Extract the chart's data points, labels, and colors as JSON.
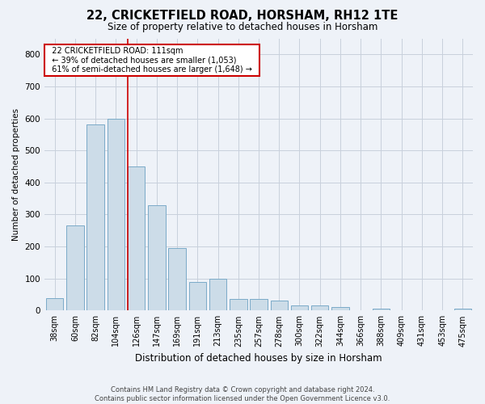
{
  "title": "22, CRICKETFIELD ROAD, HORSHAM, RH12 1TE",
  "subtitle": "Size of property relative to detached houses in Horsham",
  "xlabel": "Distribution of detached houses by size in Horsham",
  "ylabel": "Number of detached properties",
  "footer_line1": "Contains HM Land Registry data © Crown copyright and database right 2024.",
  "footer_line2": "Contains public sector information licensed under the Open Government Licence v3.0.",
  "bar_labels": [
    "38sqm",
    "60sqm",
    "82sqm",
    "104sqm",
    "126sqm",
    "147sqm",
    "169sqm",
    "191sqm",
    "213sqm",
    "235sqm",
    "257sqm",
    "278sqm",
    "300sqm",
    "322sqm",
    "344sqm",
    "366sqm",
    "388sqm",
    "409sqm",
    "431sqm",
    "453sqm",
    "475sqm"
  ],
  "bar_values": [
    38,
    265,
    580,
    600,
    450,
    330,
    195,
    90,
    100,
    35,
    35,
    30,
    15,
    15,
    10,
    0,
    5,
    0,
    0,
    0,
    5
  ],
  "bar_color": "#ccdce8",
  "bar_edge_color": "#7aaac8",
  "grid_color": "#c8d0dc",
  "background_color": "#eef2f8",
  "red_line_x": 3.58,
  "annotation_text": "  22 CRICKETFIELD ROAD: 111sqm  \n  ← 39% of detached houses are smaller (1,053)  \n  61% of semi-detached houses are larger (1,648) →  ",
  "annotation_box_color": "#ffffff",
  "annotation_border_color": "#cc0000",
  "red_line_color": "#cc0000",
  "ylim": [
    0,
    850
  ],
  "yticks": [
    0,
    100,
    200,
    300,
    400,
    500,
    600,
    700,
    800
  ]
}
